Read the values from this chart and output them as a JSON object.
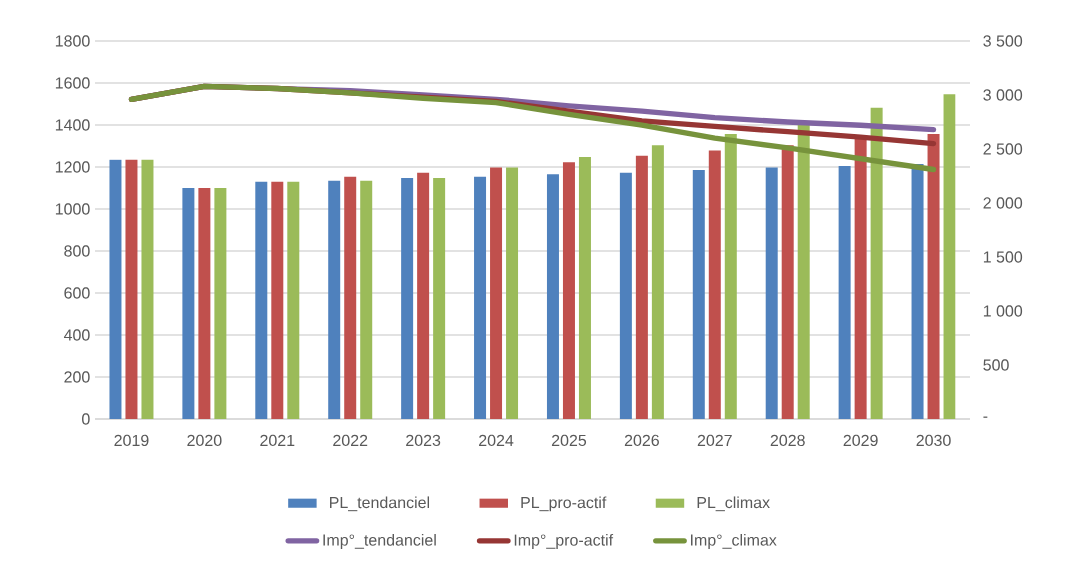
{
  "chart_data": {
    "type": "bar",
    "categories": [
      "2019",
      "2020",
      "2021",
      "2022",
      "2023",
      "2024",
      "2025",
      "2026",
      "2027",
      "2028",
      "2029",
      "2030"
    ],
    "series": [
      {
        "name": "PL_tendanciel",
        "color": "#4f81bd",
        "values": [
          1235,
          1100,
          1130,
          1135,
          1148,
          1154,
          1165,
          1173,
          1186,
          1198,
          1205,
          1214
        ]
      },
      {
        "name": "PL_pro-actif",
        "color": "#c0504d",
        "values": [
          1235,
          1100,
          1130,
          1154,
          1173,
          1198,
          1222,
          1254,
          1279,
          1303,
          1341,
          1357
        ]
      },
      {
        "name": "PL_climax",
        "color": "#9bbb59",
        "values": [
          1235,
          1100,
          1130,
          1135,
          1148,
          1198,
          1248,
          1303,
          1357,
          1400,
          1482,
          1546
        ]
      },
      {
        "name": "Imp°_tendanciel",
        "color": "#8064a2",
        "type": "line",
        "axis": "y2",
        "values": [
          2960,
          3080,
          3060,
          3040,
          3000,
          2960,
          2900,
          2850,
          2790,
          2750,
          2720,
          2680
        ]
      },
      {
        "name": "Imp°_pro-actif",
        "color": "#963634",
        "type": "line",
        "axis": "y2",
        "values": [
          2960,
          3080,
          3060,
          3020,
          2980,
          2940,
          2850,
          2760,
          2710,
          2660,
          2610,
          2550
        ]
      },
      {
        "name": "Imp°_climax",
        "color": "#77933c",
        "type": "line",
        "axis": "y2",
        "values": [
          2960,
          3080,
          3060,
          3020,
          2970,
          2930,
          2820,
          2720,
          2600,
          2510,
          2410,
          2310
        ]
      }
    ],
    "ylim": [
      0,
      1800
    ],
    "yticks": [
      0,
      200,
      400,
      600,
      800,
      1000,
      1200,
      1400,
      1600,
      1800
    ],
    "y2lim": [
      0,
      3500
    ],
    "y2ticks": [
      {
        "value": 0,
        "label": "-"
      },
      {
        "value": 500,
        "label": "500"
      },
      {
        "value": 1000,
        "label": "1 000"
      },
      {
        "value": 1500,
        "label": "1 500"
      },
      {
        "value": 2000,
        "label": "2 000"
      },
      {
        "value": 2500,
        "label": "2 500"
      },
      {
        "value": 3000,
        "label": "3 000"
      },
      {
        "value": 3500,
        "label": "3 500"
      }
    ],
    "grid": "y",
    "legend": "bottom"
  }
}
